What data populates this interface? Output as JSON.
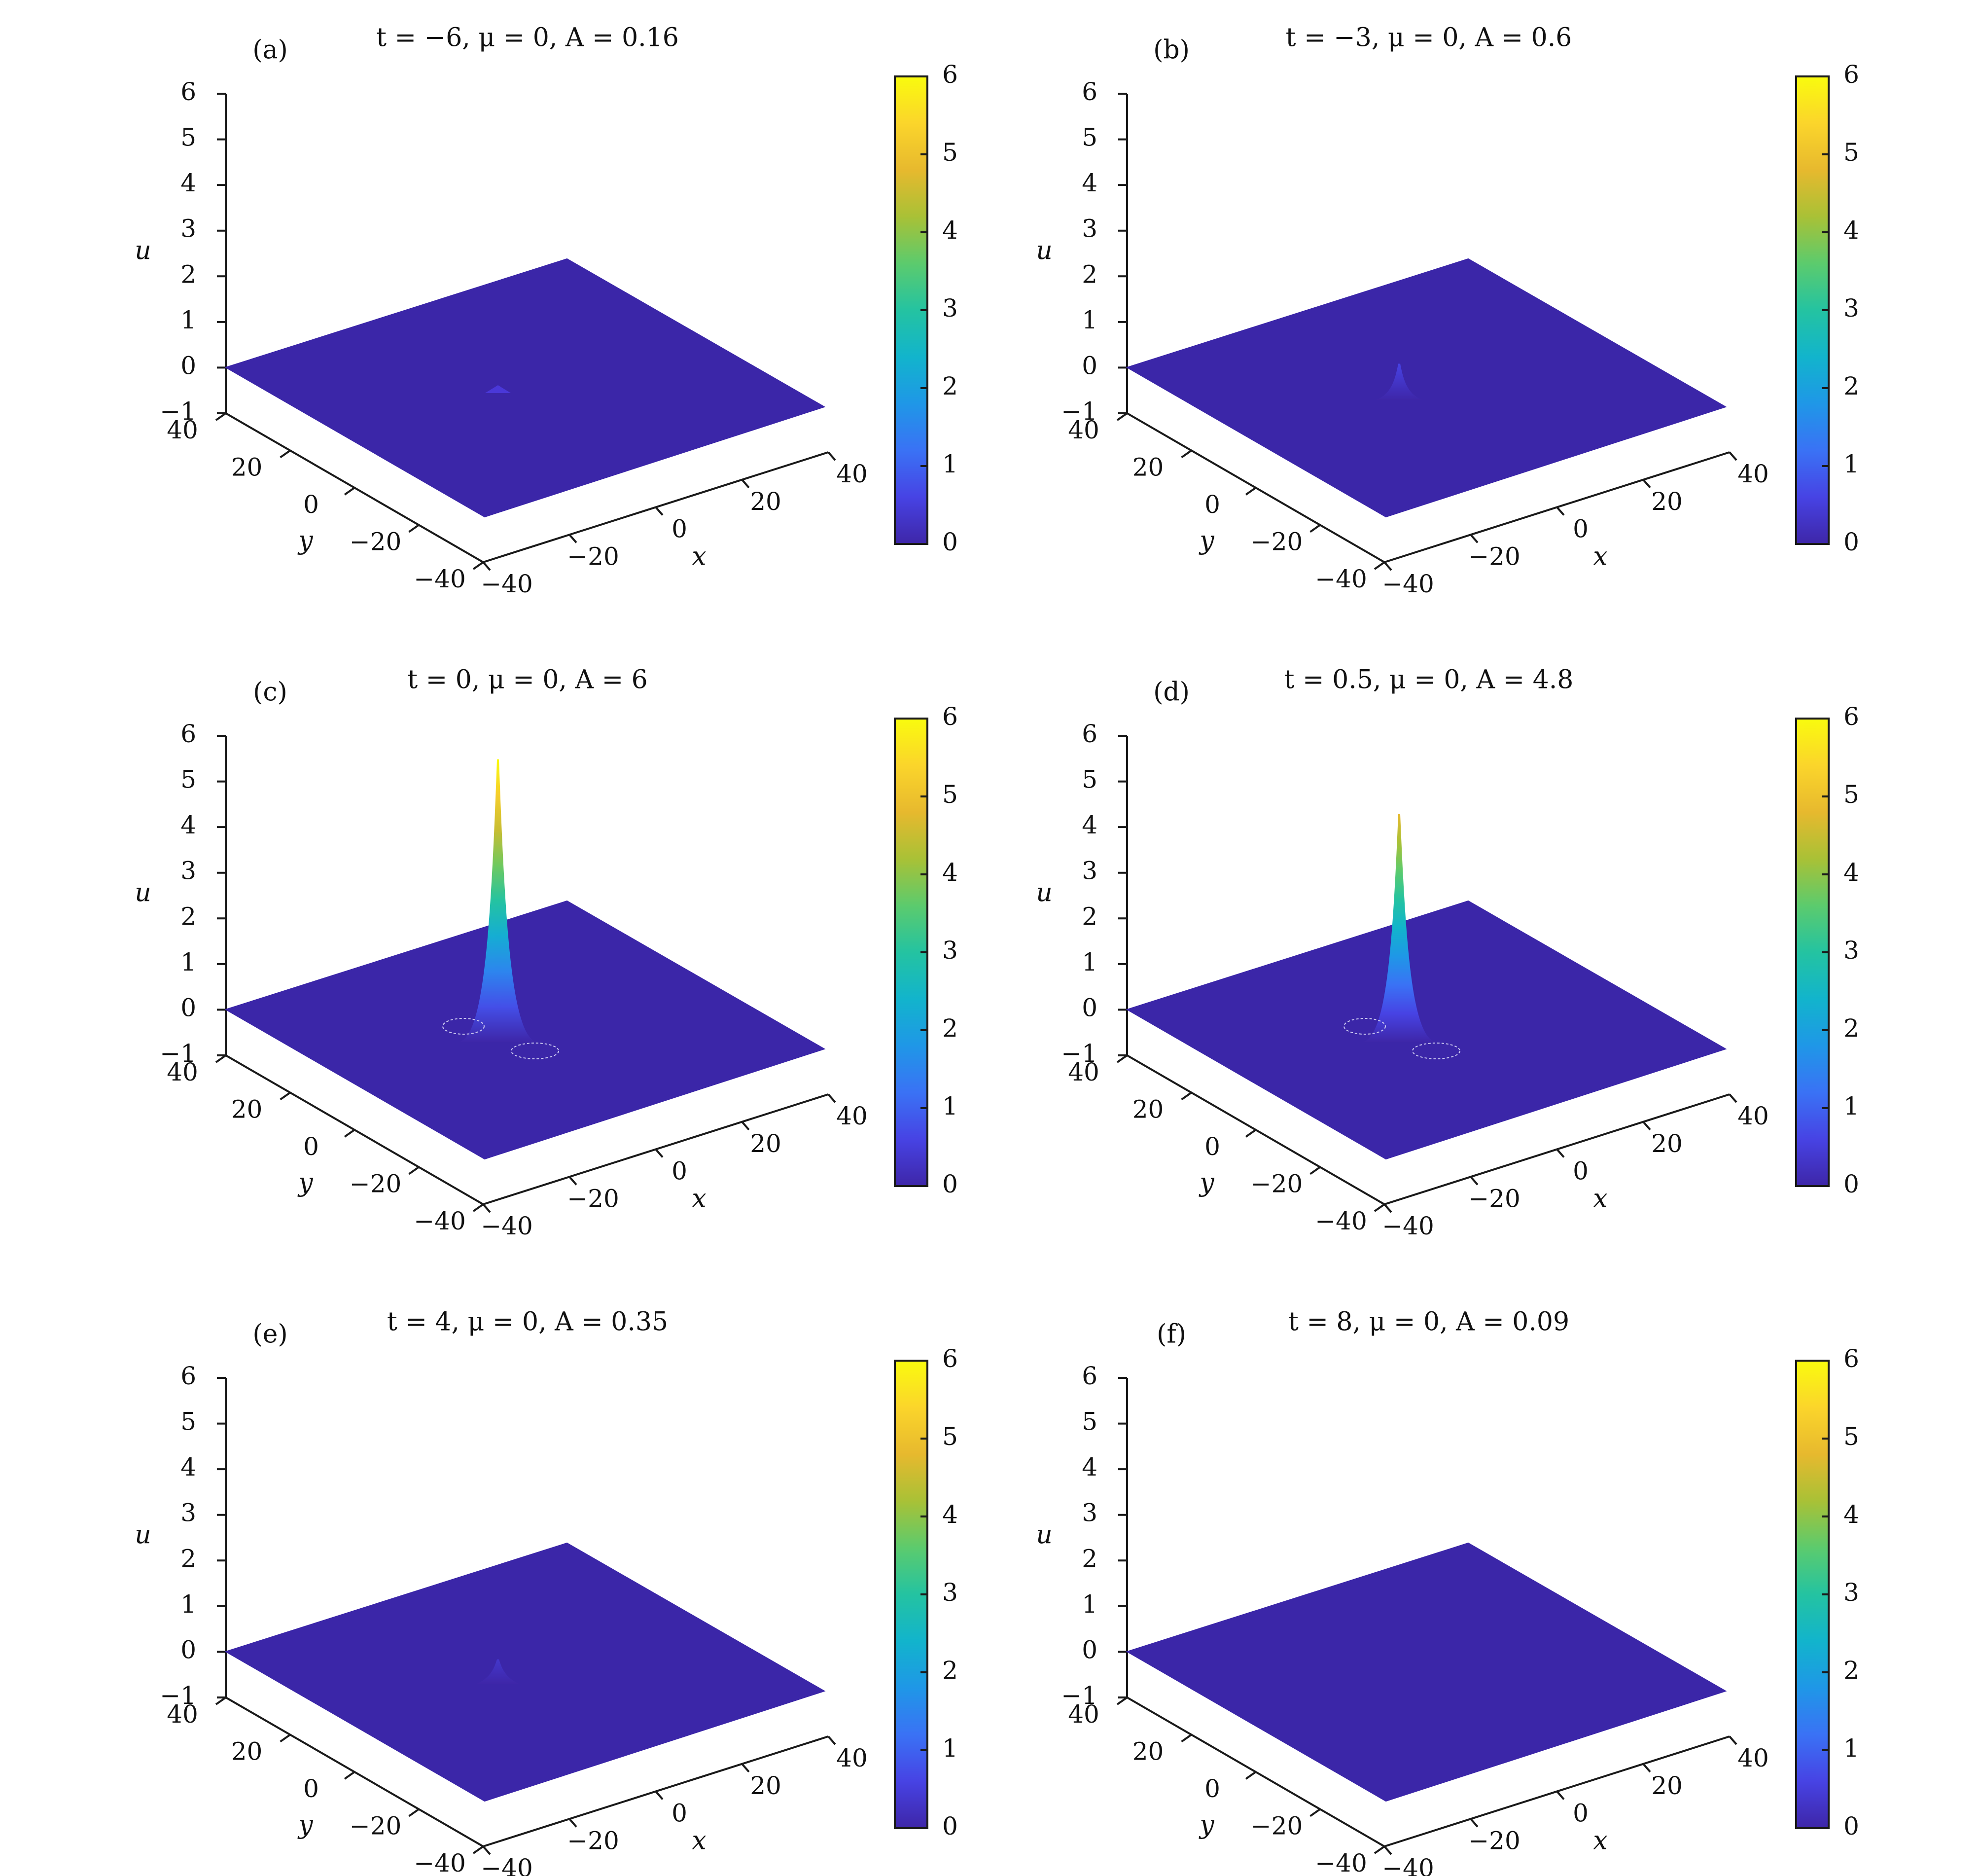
{
  "figure": {
    "colormap": [
      "#3e26a8",
      "#4743e4",
      "#3a72f5",
      "#1f97e7",
      "#12b4cc",
      "#24c3a1",
      "#5ccb6d",
      "#a9c136",
      "#e7b92e",
      "#fbd52b",
      "#f9fb0e"
    ],
    "flat_color": "#3b26a8"
  },
  "chart_data": [
    {
      "type": "surface",
      "panel_label": "(a)",
      "title": "t = −6,  μ = 0,  A = 0.16",
      "t": -6,
      "mu": 0,
      "A": 0.16,
      "xlabel": "x",
      "ylabel": "y",
      "zlabel": "u",
      "xlim": [
        -40,
        40
      ],
      "ylim": [
        -40,
        40
      ],
      "zlim": [
        -1,
        6
      ],
      "xticks": [
        "−40",
        "−20",
        "0",
        "20",
        "40"
      ],
      "yticks": [
        "−40",
        "−20",
        "0",
        "20",
        "40"
      ],
      "zticks": [
        "−1",
        "0",
        "1",
        "2",
        "3",
        "4",
        "5",
        "6"
      ],
      "colorbar": {
        "range": [
          0,
          6
        ],
        "ticks": [
          "0",
          "1",
          "2",
          "3",
          "4",
          "5",
          "6"
        ]
      }
    },
    {
      "type": "surface",
      "panel_label": "(b)",
      "title": "t = −3,  μ = 0,  A = 0.6",
      "t": -3,
      "mu": 0,
      "A": 0.6,
      "xlabel": "x",
      "ylabel": "y",
      "zlabel": "u",
      "xlim": [
        -40,
        40
      ],
      "ylim": [
        -40,
        40
      ],
      "zlim": [
        -1,
        6
      ],
      "xticks": [
        "−40",
        "−20",
        "0",
        "20",
        "40"
      ],
      "yticks": [
        "−40",
        "−20",
        "0",
        "20",
        "40"
      ],
      "zticks": [
        "−1",
        "0",
        "1",
        "2",
        "3",
        "4",
        "5",
        "6"
      ],
      "colorbar": {
        "range": [
          0,
          6
        ],
        "ticks": [
          "0",
          "1",
          "2",
          "3",
          "4",
          "5",
          "6"
        ]
      }
    },
    {
      "type": "surface",
      "panel_label": "(c)",
      "title": "t = 0,  μ = 0,  A = 6",
      "t": 0,
      "mu": 0,
      "A": 6,
      "xlabel": "x",
      "ylabel": "y",
      "zlabel": "u",
      "xlim": [
        -40,
        40
      ],
      "ylim": [
        -40,
        40
      ],
      "zlim": [
        -1,
        6
      ],
      "xticks": [
        "−40",
        "−20",
        "0",
        "20",
        "40"
      ],
      "yticks": [
        "−40",
        "−20",
        "0",
        "20",
        "40"
      ],
      "zticks": [
        "−1",
        "0",
        "1",
        "2",
        "3",
        "4",
        "5",
        "6"
      ],
      "colorbar": {
        "range": [
          0,
          6
        ],
        "ticks": [
          "0",
          "1",
          "2",
          "3",
          "4",
          "5",
          "6"
        ]
      }
    },
    {
      "type": "surface",
      "panel_label": "(d)",
      "title": "t = 0.5,  μ = 0,  A = 4.8",
      "t": 0.5,
      "mu": 0,
      "A": 4.8,
      "xlabel": "x",
      "ylabel": "y",
      "zlabel": "u",
      "xlim": [
        -40,
        40
      ],
      "ylim": [
        -40,
        40
      ],
      "zlim": [
        -1,
        6
      ],
      "xticks": [
        "−40",
        "−20",
        "0",
        "20",
        "40"
      ],
      "yticks": [
        "−40",
        "−20",
        "0",
        "20",
        "40"
      ],
      "zticks": [
        "−1",
        "0",
        "1",
        "2",
        "3",
        "4",
        "5",
        "6"
      ],
      "colorbar": {
        "range": [
          0,
          6
        ],
        "ticks": [
          "0",
          "1",
          "2",
          "3",
          "4",
          "5",
          "6"
        ]
      }
    },
    {
      "type": "surface",
      "panel_label": "(e)",
      "title": "t = 4,  μ = 0,  A = 0.35",
      "t": 4,
      "mu": 0,
      "A": 0.35,
      "xlabel": "x",
      "ylabel": "y",
      "zlabel": "u",
      "xlim": [
        -40,
        40
      ],
      "ylim": [
        -40,
        40
      ],
      "zlim": [
        -1,
        6
      ],
      "xticks": [
        "−40",
        "−20",
        "0",
        "20",
        "40"
      ],
      "yticks": [
        "−40",
        "−20",
        "0",
        "20",
        "40"
      ],
      "zticks": [
        "−1",
        "0",
        "1",
        "2",
        "3",
        "4",
        "5",
        "6"
      ],
      "colorbar": {
        "range": [
          0,
          6
        ],
        "ticks": [
          "0",
          "1",
          "2",
          "3",
          "4",
          "5",
          "6"
        ]
      }
    },
    {
      "type": "surface",
      "panel_label": "(f)",
      "title": "t = 8,  μ = 0,  A = 0.09",
      "t": 8,
      "mu": 0,
      "A": 0.09,
      "xlabel": "x",
      "ylabel": "y",
      "zlabel": "u",
      "xlim": [
        -40,
        40
      ],
      "ylim": [
        -40,
        40
      ],
      "zlim": [
        -1,
        6
      ],
      "xticks": [
        "−40",
        "−20",
        "0",
        "20",
        "40"
      ],
      "yticks": [
        "−40",
        "−20",
        "0",
        "20",
        "40"
      ],
      "zticks": [
        "−1",
        "0",
        "1",
        "2",
        "3",
        "4",
        "5",
        "6"
      ],
      "colorbar": {
        "range": [
          0,
          6
        ],
        "ticks": [
          "0",
          "1",
          "2",
          "3",
          "4",
          "5",
          "6"
        ]
      }
    }
  ]
}
